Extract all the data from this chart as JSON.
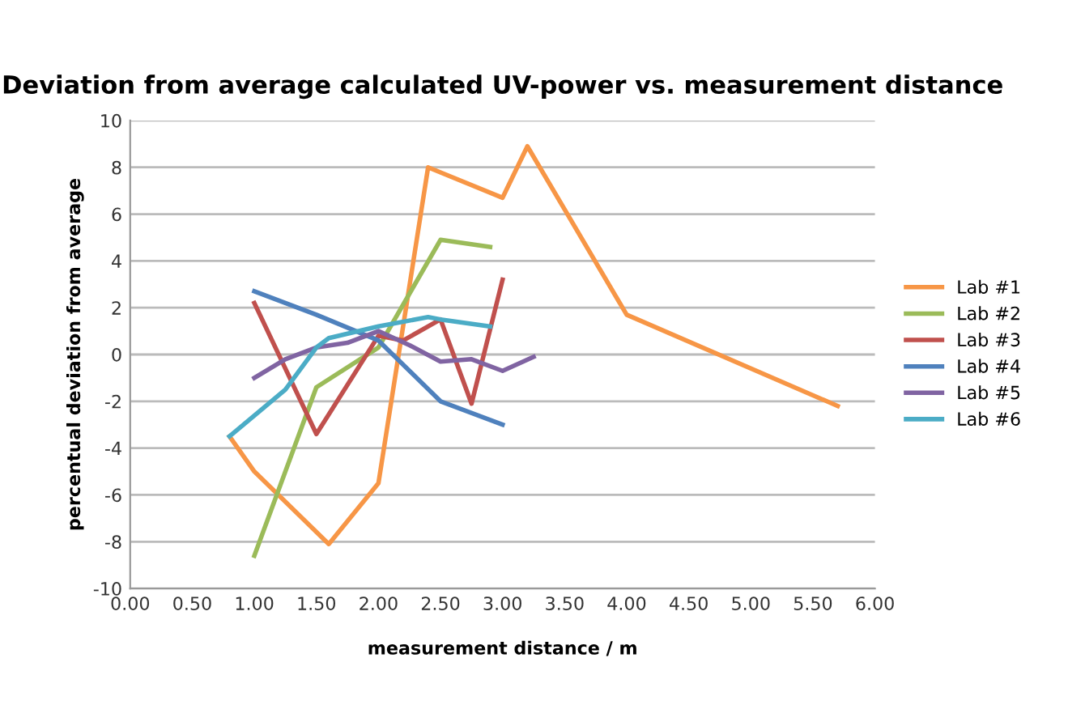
{
  "chart_data": {
    "type": "line",
    "title": "Deviation from average calculated UV-power vs. measurement distance",
    "xlabel": "measurement distance / m",
    "ylabel": "percentual deviation from average",
    "xlim": [
      0,
      6
    ],
    "xticks": [
      {
        "value": 0,
        "label": "0.00"
      },
      {
        "value": 0.5,
        "label": "0.50"
      },
      {
        "value": 1,
        "label": "1.00"
      },
      {
        "value": 1.5,
        "label": "1.50"
      },
      {
        "value": 2,
        "label": "2.00"
      },
      {
        "value": 2.5,
        "label": "2.50"
      },
      {
        "value": 3,
        "label": "3.00"
      },
      {
        "value": 3.5,
        "label": "3.50"
      },
      {
        "value": 4,
        "label": "4.00"
      },
      {
        "value": 4.5,
        "label": "4.50"
      },
      {
        "value": 5,
        "label": "5.00"
      },
      {
        "value": 5.5,
        "label": "5.50"
      },
      {
        "value": 6,
        "label": "6.00"
      }
    ],
    "ylim": [
      -10,
      10
    ],
    "yticks": [
      -10,
      -8,
      -6,
      -4,
      -2,
      0,
      2,
      4,
      6,
      8,
      10
    ],
    "grid": "y",
    "legend": "right",
    "marker": "none",
    "line_style": "solid",
    "series": [
      {
        "name": "Lab #1",
        "color": "#f79646",
        "x": [
          0.8,
          1.0,
          1.6,
          2.0,
          2.4,
          3.0,
          3.2,
          4.0,
          5.7
        ],
        "values": [
          -3.5,
          -5.0,
          -8.1,
          -5.5,
          8.0,
          6.7,
          8.9,
          1.7,
          -2.2
        ]
      },
      {
        "name": "Lab #2",
        "color": "#9bbb59",
        "x": [
          1.0,
          1.5,
          2.0,
          2.5,
          2.9
        ],
        "values": [
          -8.6,
          -1.4,
          0.3,
          4.9,
          4.6
        ]
      },
      {
        "name": "Lab #3",
        "color": "#c0504d",
        "x": [
          1.0,
          1.5,
          2.0,
          2.2,
          2.5,
          2.75,
          3.0
        ],
        "values": [
          2.2,
          -3.4,
          0.8,
          0.6,
          1.5,
          -2.1,
          3.2
        ]
      },
      {
        "name": "Lab #4",
        "color": "#4f81bd",
        "x": [
          1.0,
          1.5,
          2.0,
          2.5,
          3.0
        ],
        "values": [
          2.7,
          1.7,
          0.6,
          -2.0,
          -3.0
        ]
      },
      {
        "name": "Lab #5",
        "color": "#8064a2",
        "x": [
          1.0,
          1.25,
          1.5,
          1.75,
          2.0,
          2.25,
          2.5,
          2.75,
          3.0,
          3.25
        ],
        "values": [
          -1.0,
          -0.2,
          0.3,
          0.5,
          1.0,
          0.4,
          -0.3,
          -0.2,
          -0.7,
          -0.1
        ]
      },
      {
        "name": "Lab #6",
        "color": "#4bacc6",
        "x": [
          0.8,
          1.25,
          1.5,
          1.6,
          2.0,
          2.4,
          2.5,
          2.9
        ],
        "values": [
          -3.5,
          -1.5,
          0.3,
          0.7,
          1.2,
          1.6,
          1.5,
          1.2
        ]
      }
    ]
  }
}
